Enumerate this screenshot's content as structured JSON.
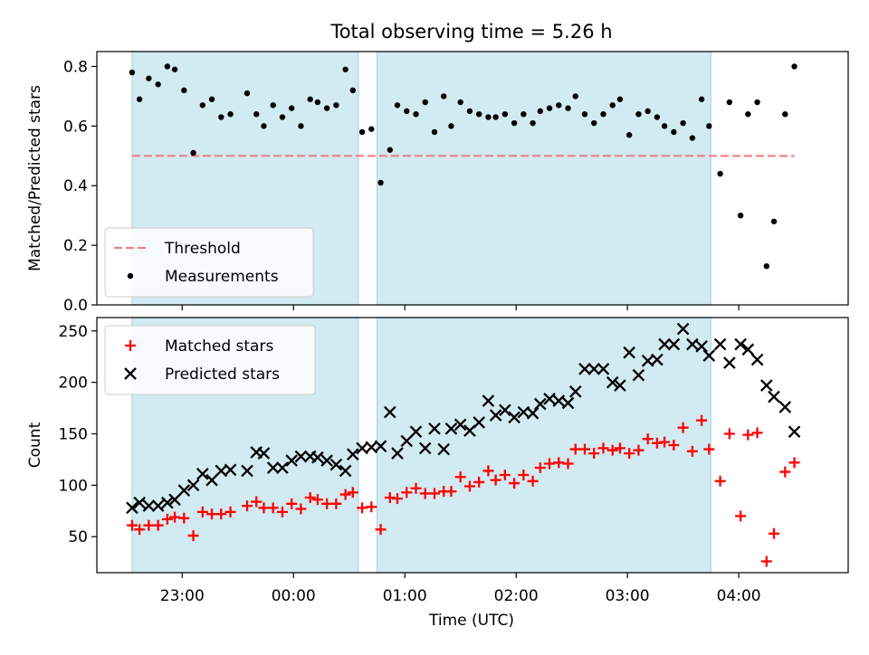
{
  "figure": {
    "title": "Total observing time = 5.26 h",
    "xlabel": "Time (UTC)",
    "colors": {
      "shade": "#add8e6",
      "threshold": "#f08080",
      "measurements": "#000000",
      "matched": "#ff0000",
      "predicted": "#000000"
    }
  },
  "chart_data": [
    {
      "type": "scatter",
      "id": "ratio",
      "ylabel": "Matched/Predicted stars",
      "ylim": [
        0.0,
        0.85
      ],
      "yticks": [
        0.0,
        0.2,
        0.4,
        0.6,
        0.8
      ],
      "ytick_labels": [
        "0.0",
        "0.2",
        "0.4",
        "0.6",
        "0.8"
      ],
      "xlim": [
        "22:14",
        "04:59"
      ],
      "xticks": [
        "23:00",
        "00:00",
        "01:00",
        "02:00",
        "03:00",
        "04:00"
      ],
      "legend_position": "lower left",
      "shaded_intervals": [
        [
          "22:33",
          "00:35"
        ],
        [
          "00:45",
          "03:45"
        ]
      ],
      "threshold": {
        "name": "Threshold",
        "value": 0.5,
        "x": [
          "22:33",
          "04:30"
        ],
        "style": "dashed"
      },
      "series": [
        {
          "name": "Measurements",
          "marker": "dot",
          "points": [
            [
              "22:33",
              0.78
            ],
            [
              "22:37",
              0.69
            ],
            [
              "22:42",
              0.76
            ],
            [
              "22:47",
              0.74
            ],
            [
              "22:52",
              0.8
            ],
            [
              "22:56",
              0.79
            ],
            [
              "23:01",
              0.72
            ],
            [
              "23:06",
              0.51
            ],
            [
              "23:11",
              0.67
            ],
            [
              "23:16",
              0.69
            ],
            [
              "23:21",
              0.63
            ],
            [
              "23:26",
              0.64
            ],
            [
              "23:35",
              0.71
            ],
            [
              "23:40",
              0.64
            ],
            [
              "23:44",
              0.6
            ],
            [
              "23:49",
              0.67
            ],
            [
              "23:54",
              0.63
            ],
            [
              "23:59",
              0.66
            ],
            [
              "00:04",
              0.6
            ],
            [
              "00:09",
              0.69
            ],
            [
              "00:13",
              0.68
            ],
            [
              "00:18",
              0.66
            ],
            [
              "00:23",
              0.67
            ],
            [
              "00:28",
              0.79
            ],
            [
              "00:32",
              0.72
            ],
            [
              "00:37",
              0.58
            ],
            [
              "00:42",
              0.59
            ],
            [
              "00:47",
              0.41
            ],
            [
              "00:52",
              0.52
            ],
            [
              "00:56",
              0.67
            ],
            [
              "01:01",
              0.65
            ],
            [
              "01:06",
              0.64
            ],
            [
              "01:11",
              0.68
            ],
            [
              "01:16",
              0.58
            ],
            [
              "01:21",
              0.7
            ],
            [
              "01:25",
              0.6
            ],
            [
              "01:30",
              0.68
            ],
            [
              "01:35",
              0.65
            ],
            [
              "01:40",
              0.64
            ],
            [
              "01:45",
              0.63
            ],
            [
              "01:49",
              0.63
            ],
            [
              "01:54",
              0.64
            ],
            [
              "01:59",
              0.61
            ],
            [
              "02:04",
              0.64
            ],
            [
              "02:09",
              0.61
            ],
            [
              "02:13",
              0.65
            ],
            [
              "02:18",
              0.66
            ],
            [
              "02:23",
              0.67
            ],
            [
              "02:28",
              0.66
            ],
            [
              "02:32",
              0.7
            ],
            [
              "02:37",
              0.64
            ],
            [
              "02:42",
              0.61
            ],
            [
              "02:47",
              0.64
            ],
            [
              "02:52",
              0.67
            ],
            [
              "02:56",
              0.69
            ],
            [
              "03:01",
              0.57
            ],
            [
              "03:06",
              0.64
            ],
            [
              "03:11",
              0.65
            ],
            [
              "03:16",
              0.63
            ],
            [
              "03:20",
              0.6
            ],
            [
              "03:25",
              0.58
            ],
            [
              "03:30",
              0.61
            ],
            [
              "03:35",
              0.56
            ],
            [
              "03:40",
              0.69
            ],
            [
              "03:44",
              0.6
            ],
            [
              "03:50",
              0.44
            ],
            [
              "03:55",
              0.68
            ],
            [
              "04:01",
              0.3
            ],
            [
              "04:05",
              0.64
            ],
            [
              "04:10",
              0.68
            ],
            [
              "04:15",
              0.13
            ],
            [
              "04:19",
              0.28
            ],
            [
              "04:25",
              0.64
            ],
            [
              "04:30",
              0.8
            ]
          ]
        }
      ]
    },
    {
      "type": "scatter",
      "id": "counts",
      "ylabel": "Count",
      "ylim": [
        15,
        263
      ],
      "yticks": [
        50,
        100,
        150,
        200,
        250
      ],
      "ytick_labels": [
        "50",
        "100",
        "150",
        "200",
        "250"
      ],
      "xlim": [
        "22:14",
        "04:59"
      ],
      "xticks": [
        "23:00",
        "00:00",
        "01:00",
        "02:00",
        "03:00",
        "04:00"
      ],
      "xtick_labels": [
        "23:00",
        "00:00",
        "01:00",
        "02:00",
        "03:00",
        "04:00"
      ],
      "legend_position": "upper left",
      "shaded_intervals": [
        [
          "22:33",
          "00:35"
        ],
        [
          "00:45",
          "03:45"
        ]
      ],
      "series": [
        {
          "name": "Matched stars",
          "marker": "plus",
          "points": [
            [
              "22:33",
              61
            ],
            [
              "22:37",
              57
            ],
            [
              "22:42",
              61
            ],
            [
              "22:47",
              61
            ],
            [
              "22:52",
              67
            ],
            [
              "22:56",
              69
            ],
            [
              "23:01",
              68
            ],
            [
              "23:06",
              51
            ],
            [
              "23:11",
              74
            ],
            [
              "23:16",
              72
            ],
            [
              "23:21",
              72
            ],
            [
              "23:26",
              74
            ],
            [
              "23:35",
              80
            ],
            [
              "23:40",
              84
            ],
            [
              "23:44",
              78
            ],
            [
              "23:49",
              78
            ],
            [
              "23:54",
              74
            ],
            [
              "23:59",
              82
            ],
            [
              "00:04",
              77
            ],
            [
              "00:09",
              88
            ],
            [
              "00:13",
              86
            ],
            [
              "00:18",
              82
            ],
            [
              "00:23",
              82
            ],
            [
              "00:28",
              91
            ],
            [
              "00:32",
              93
            ],
            [
              "00:37",
              78
            ],
            [
              "00:42",
              79
            ],
            [
              "00:47",
              57
            ],
            [
              "00:52",
              88
            ],
            [
              "00:56",
              87
            ],
            [
              "01:01",
              93
            ],
            [
              "01:06",
              97
            ],
            [
              "01:11",
              92
            ],
            [
              "01:16",
              92
            ],
            [
              "01:21",
              94
            ],
            [
              "01:25",
              94
            ],
            [
              "01:30",
              108
            ],
            [
              "01:35",
              99
            ],
            [
              "01:40",
              103
            ],
            [
              "01:45",
              114
            ],
            [
              "01:49",
              105
            ],
            [
              "01:54",
              110
            ],
            [
              "01:59",
              102
            ],
            [
              "02:04",
              110
            ],
            [
              "02:09",
              104
            ],
            [
              "02:13",
              117
            ],
            [
              "02:18",
              121
            ],
            [
              "02:23",
              122
            ],
            [
              "02:28",
              121
            ],
            [
              "02:32",
              135
            ],
            [
              "02:37",
              135
            ],
            [
              "02:42",
              131
            ],
            [
              "02:47",
              136
            ],
            [
              "02:52",
              134
            ],
            [
              "02:56",
              136
            ],
            [
              "03:01",
              131
            ],
            [
              "03:06",
              134
            ],
            [
              "03:11",
              145
            ],
            [
              "03:16",
              141
            ],
            [
              "03:20",
              142
            ],
            [
              "03:25",
              139
            ],
            [
              "03:30",
              156
            ],
            [
              "03:35",
              133
            ],
            [
              "03:40",
              163
            ],
            [
              "03:44",
              135
            ],
            [
              "03:50",
              104
            ],
            [
              "03:55",
              150
            ],
            [
              "04:01",
              70
            ],
            [
              "04:05",
              149
            ],
            [
              "04:10",
              151
            ],
            [
              "04:15",
              26
            ],
            [
              "04:19",
              53
            ],
            [
              "04:25",
              113
            ],
            [
              "04:30",
              122
            ]
          ]
        },
        {
          "name": "Predicted stars",
          "marker": "x",
          "points": [
            [
              "22:33",
              78
            ],
            [
              "22:37",
              83
            ],
            [
              "22:42",
              80
            ],
            [
              "22:47",
              80
            ],
            [
              "22:52",
              83
            ],
            [
              "22:56",
              86
            ],
            [
              "23:01",
              95
            ],
            [
              "23:06",
              100
            ],
            [
              "23:11",
              111
            ],
            [
              "23:16",
              105
            ],
            [
              "23:21",
              114
            ],
            [
              "23:26",
              115
            ],
            [
              "23:35",
              114
            ],
            [
              "23:40",
              132
            ],
            [
              "23:44",
              131
            ],
            [
              "23:49",
              117
            ],
            [
              "23:54",
              117
            ],
            [
              "23:59",
              124
            ],
            [
              "00:04",
              128
            ],
            [
              "00:09",
              128
            ],
            [
              "00:13",
              127
            ],
            [
              "00:18",
              124
            ],
            [
              "00:23",
              120
            ],
            [
              "00:28",
              114
            ],
            [
              "00:32",
              130
            ],
            [
              "00:37",
              136
            ],
            [
              "00:42",
              137
            ],
            [
              "00:47",
              138
            ],
            [
              "00:52",
              171
            ],
            [
              "00:56",
              131
            ],
            [
              "01:01",
              143
            ],
            [
              "01:06",
              152
            ],
            [
              "01:11",
              136
            ],
            [
              "01:16",
              155
            ],
            [
              "01:21",
              135
            ],
            [
              "01:25",
              155
            ],
            [
              "01:30",
              159
            ],
            [
              "01:35",
              153
            ],
            [
              "01:40",
              161
            ],
            [
              "01:45",
              182
            ],
            [
              "01:49",
              168
            ],
            [
              "01:54",
              173
            ],
            [
              "01:59",
              166
            ],
            [
              "02:04",
              171
            ],
            [
              "02:09",
              170
            ],
            [
              "02:13",
              179
            ],
            [
              "02:18",
              184
            ],
            [
              "02:23",
              182
            ],
            [
              "02:28",
              180
            ],
            [
              "02:32",
              191
            ],
            [
              "02:37",
              213
            ],
            [
              "02:42",
              213
            ],
            [
              "02:47",
              213
            ],
            [
              "02:52",
              200
            ],
            [
              "02:56",
              197
            ],
            [
              "03:01",
              229
            ],
            [
              "03:06",
              207
            ],
            [
              "03:11",
              221
            ],
            [
              "03:16",
              222
            ],
            [
              "03:20",
              237
            ],
            [
              "03:25",
              237
            ],
            [
              "03:30",
              252
            ],
            [
              "03:35",
              237
            ],
            [
              "03:40",
              235
            ],
            [
              "03:44",
              226
            ],
            [
              "03:50",
              237
            ],
            [
              "03:55",
              219
            ],
            [
              "04:01",
              237
            ],
            [
              "04:05",
              232
            ],
            [
              "04:10",
              222
            ],
            [
              "04:15",
              197
            ],
            [
              "04:19",
              186
            ],
            [
              "04:25",
              176
            ],
            [
              "04:30",
              152
            ]
          ]
        }
      ]
    }
  ]
}
